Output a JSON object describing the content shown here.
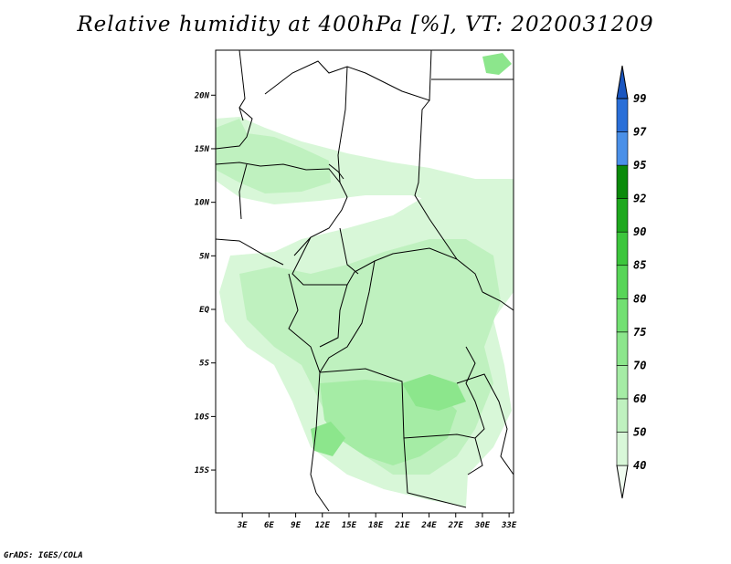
{
  "title": "Relative humidity at 400hPa [%], VT: 2020031209",
  "footer": "GrADS: IGES/COLA",
  "map": {
    "lat_range": [
      -19,
      24.2
    ],
    "lon_range": [
      0,
      33.5
    ],
    "lat_ticks": [
      {
        "value": 20,
        "label": "20N"
      },
      {
        "value": 15,
        "label": "15N"
      },
      {
        "value": 10,
        "label": "10N"
      },
      {
        "value": 5,
        "label": "5N"
      },
      {
        "value": 0,
        "label": "EQ"
      },
      {
        "value": -5,
        "label": "5S"
      },
      {
        "value": -10,
        "label": "10S"
      },
      {
        "value": -15,
        "label": "15S"
      }
    ],
    "lon_ticks": [
      {
        "value": 3,
        "label": "3E"
      },
      {
        "value": 6,
        "label": "6E"
      },
      {
        "value": 9,
        "label": "9E"
      },
      {
        "value": 12,
        "label": "12E"
      },
      {
        "value": 15,
        "label": "15E"
      },
      {
        "value": 18,
        "label": "18E"
      },
      {
        "value": 21,
        "label": "21E"
      },
      {
        "value": 24,
        "label": "24E"
      },
      {
        "value": 27,
        "label": "27E"
      },
      {
        "value": 30,
        "label": "30E"
      },
      {
        "value": 33,
        "label": "33E"
      }
    ]
  },
  "colorbar": {
    "levels": [
      "40",
      "50",
      "60",
      "70",
      "75",
      "80",
      "85",
      "90",
      "92",
      "95",
      "97",
      "99"
    ],
    "colors": [
      "#f0fcf0",
      "#d8f7d8",
      "#bff1bf",
      "#a5eca5",
      "#8ce68c",
      "#72e072",
      "#58d558",
      "#3dc63d",
      "#1ea81e",
      "#0a8a0a",
      "#4a90e8",
      "#2a6fd8",
      "#1a56c0"
    ]
  }
}
